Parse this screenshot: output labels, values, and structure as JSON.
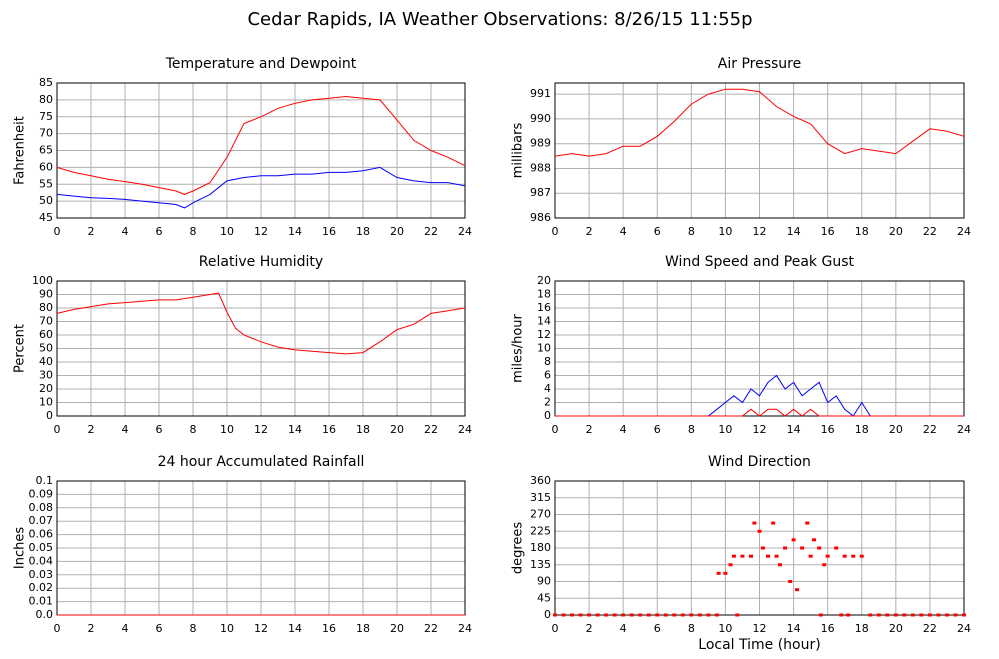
{
  "title": "Cedar Rapids, IA Weather Observations: 8/26/15 11:55p",
  "chart_data": [
    {
      "type": "line",
      "title": "Temperature and Dewpoint",
      "ylabel": "Fahrenheit",
      "x": [
        0,
        1,
        2,
        3,
        4,
        5,
        6,
        7,
        7.5,
        8,
        9,
        10,
        11,
        12,
        13,
        14,
        15,
        16,
        17,
        18,
        19,
        20,
        21,
        22,
        23,
        24
      ],
      "series": [
        {
          "name": "Temperature",
          "color": "#ff0000",
          "values": [
            60,
            58.5,
            57.5,
            56.5,
            55.8,
            55,
            54,
            53,
            52,
            53,
            55.5,
            63,
            73,
            75,
            77.5,
            79,
            80,
            80.5,
            81,
            80.5,
            80,
            74,
            68,
            65,
            63,
            60.5
          ]
        },
        {
          "name": "Dewpoint",
          "color": "#0000ff",
          "values": [
            52,
            51.5,
            51,
            50.8,
            50.5,
            50,
            49.5,
            49,
            48,
            49.5,
            52,
            56,
            57,
            57.5,
            57.5,
            58,
            58,
            58.5,
            58.5,
            59,
            60,
            57,
            56,
            55.5,
            55.5,
            54.5
          ]
        }
      ],
      "xlim": [
        0,
        24
      ],
      "xticks": [
        0,
        2,
        4,
        6,
        8,
        10,
        12,
        14,
        16,
        18,
        20,
        22,
        24
      ],
      "ylim": [
        45,
        85
      ],
      "yticks": [
        45,
        50,
        55,
        60,
        65,
        70,
        75,
        80,
        85
      ],
      "grid": true
    },
    {
      "type": "line",
      "title": "Air Pressure",
      "ylabel": "millibars",
      "x": [
        0,
        1,
        2,
        3,
        4,
        5,
        6,
        7,
        8,
        9,
        10,
        11,
        12,
        13,
        14,
        15,
        16,
        17,
        18,
        19,
        20,
        21,
        22,
        23,
        24
      ],
      "series": [
        {
          "name": "Pressure",
          "color": "#ff0000",
          "values": [
            988.5,
            988.6,
            988.5,
            988.6,
            988.9,
            988.9,
            989.3,
            989.9,
            990.6,
            991.0,
            991.2,
            991.2,
            991.1,
            990.5,
            990.1,
            989.8,
            989.0,
            988.6,
            988.8,
            988.7,
            988.6,
            989.1,
            989.6,
            989.5,
            989.3
          ]
        }
      ],
      "xlim": [
        0,
        24
      ],
      "xticks": [
        0,
        2,
        4,
        6,
        8,
        10,
        12,
        14,
        16,
        18,
        20,
        22,
        24
      ],
      "ylim": [
        986,
        991.45
      ],
      "yticks": [
        986,
        987,
        988,
        989,
        990,
        991
      ],
      "grid": true
    },
    {
      "type": "line",
      "title": "Relative Humidity",
      "ylabel": "Percent",
      "x": [
        0,
        1,
        2,
        3,
        4,
        5,
        6,
        7,
        8,
        9,
        9.5,
        10,
        10.5,
        11,
        12,
        13,
        14,
        15,
        16,
        17,
        18,
        19,
        20,
        21,
        22,
        23,
        24
      ],
      "series": [
        {
          "name": "Relative Humidity",
          "color": "#ff0000",
          "values": [
            76,
            79,
            81,
            83,
            84,
            85,
            86,
            86,
            88,
            90,
            91,
            77,
            65,
            60,
            55,
            51,
            49,
            48,
            47,
            46,
            47,
            55,
            64,
            68,
            76,
            78,
            80
          ]
        }
      ],
      "xlim": [
        0,
        24
      ],
      "xticks": [
        0,
        2,
        4,
        6,
        8,
        10,
        12,
        14,
        16,
        18,
        20,
        22,
        24
      ],
      "ylim": [
        0,
        100
      ],
      "yticks": [
        0,
        10,
        20,
        30,
        40,
        50,
        60,
        70,
        80,
        90,
        100
      ],
      "grid": true
    },
    {
      "type": "line",
      "title": "Wind Speed and Peak Gust",
      "ylabel": "miles/hour",
      "x": [
        0,
        1,
        2,
        3,
        4,
        5,
        6,
        7,
        8,
        9,
        9.5,
        10,
        10.5,
        11,
        11.5,
        12,
        12.5,
        13,
        13.5,
        14,
        14.5,
        15,
        15.5,
        16,
        16.5,
        17,
        17.5,
        18,
        18.5,
        19,
        20,
        21,
        22,
        23,
        24
      ],
      "series": [
        {
          "name": "Wind Speed",
          "color": "#0000ff",
          "values": [
            0,
            0,
            0,
            0,
            0,
            0,
            0,
            0,
            0,
            0,
            1,
            2,
            3,
            2,
            4,
            3,
            5,
            6,
            4,
            5,
            3,
            4,
            5,
            2,
            3,
            1,
            0,
            2,
            0,
            0,
            0,
            0,
            0,
            0,
            0
          ]
        },
        {
          "name": "Peak Gust",
          "color": "#ff0000",
          "values": [
            0,
            0,
            0,
            0,
            0,
            0,
            0,
            0,
            0,
            0,
            0,
            0,
            0,
            0,
            1,
            0,
            1,
            1,
            0,
            1,
            0,
            1,
            0,
            0,
            0,
            0,
            0,
            0,
            0,
            0,
            0,
            0,
            0,
            0,
            0
          ]
        }
      ],
      "xlim": [
        0,
        24
      ],
      "xticks": [
        0,
        2,
        4,
        6,
        8,
        10,
        12,
        14,
        16,
        18,
        20,
        22,
        24
      ],
      "ylim": [
        0,
        20
      ],
      "yticks": [
        0,
        2,
        4,
        6,
        8,
        10,
        12,
        14,
        16,
        18,
        20
      ],
      "grid": true
    },
    {
      "type": "line",
      "title": "24 hour Accumulated Rainfall",
      "ylabel": "Inches",
      "x": [
        0,
        24
      ],
      "series": [
        {
          "name": "Rainfall",
          "color": "#ff0000",
          "values": [
            0,
            0
          ]
        }
      ],
      "xlim": [
        0,
        24
      ],
      "xticks": [
        0,
        2,
        4,
        6,
        8,
        10,
        12,
        14,
        16,
        18,
        20,
        22,
        24
      ],
      "ylim": [
        0,
        0.1
      ],
      "yticks": [
        {
          "value": 0,
          "label": "0.0"
        },
        0.01,
        0.02,
        0.03,
        0.04,
        0.05,
        0.06,
        0.07,
        0.08,
        0.09,
        0.1
      ],
      "grid": true
    },
    {
      "type": "scatter",
      "title": "Wind Direction",
      "ylabel": "degrees",
      "xlabel": "Local Time (hour)",
      "x": [
        0,
        0.5,
        1,
        1.5,
        2,
        2.5,
        3,
        3.5,
        4,
        4.5,
        5,
        5.5,
        6,
        6.5,
        7,
        7.5,
        8,
        8.5,
        9,
        9.5,
        9.6,
        10,
        10.3,
        10.5,
        10.7,
        11,
        11.5,
        11.7,
        12,
        12.2,
        12.5,
        12.8,
        13,
        13.2,
        13.5,
        13.8,
        14,
        14.2,
        14.5,
        14.8,
        15,
        15.2,
        15.5,
        15.6,
        15.8,
        16,
        16.5,
        16.8,
        17,
        17.2,
        17.5,
        18,
        18.5,
        19,
        19.5,
        20,
        20.5,
        21,
        21.5,
        22,
        22.5,
        23,
        23.5,
        24
      ],
      "series": [
        {
          "name": "Direction",
          "color": "#ff0000",
          "values": [
            0,
            0,
            0,
            0,
            0,
            0,
            0,
            0,
            0,
            0,
            0,
            0,
            0,
            0,
            0,
            0,
            0,
            0,
            0,
            0,
            112,
            112,
            135,
            158,
            0,
            158,
            158,
            247,
            225,
            180,
            158,
            247,
            158,
            135,
            180,
            90,
            202,
            68,
            180,
            247,
            158,
            202,
            180,
            0,
            135,
            158,
            180,
            0,
            158,
            0,
            158,
            158,
            0,
            0,
            0,
            0,
            0,
            0,
            0,
            0,
            0,
            0,
            0,
            0
          ]
        }
      ],
      "xlim": [
        0,
        24
      ],
      "xticks": [
        0,
        2,
        4,
        6,
        8,
        10,
        12,
        14,
        16,
        18,
        20,
        22,
        24
      ],
      "ylim": [
        0,
        360
      ],
      "yticks": [
        0,
        45,
        90,
        135,
        180,
        225,
        270,
        315,
        360
      ],
      "grid": true
    }
  ]
}
